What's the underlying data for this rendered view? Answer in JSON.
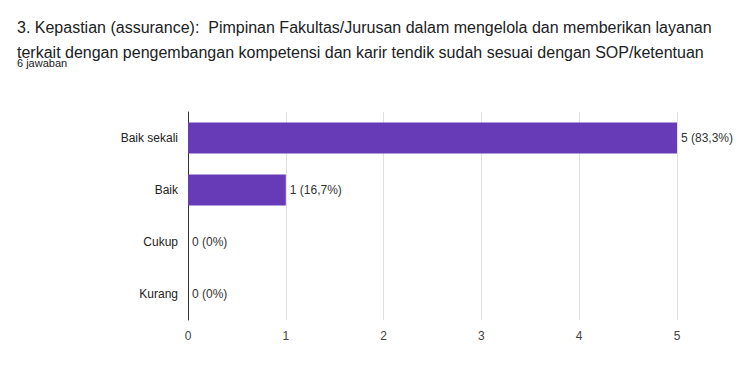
{
  "chart_data": {
    "type": "bar",
    "title": "3. Kepastian (assurance):  Pimpinan Fakultas/Jurusan dalam mengelola dan memberikan layanan terkait dengan pengembangan kompetensi dan karir tendik sudah sesuai dengan SOP/ketentuan",
    "subtitle": "6 jawaban",
    "categories": [
      "Baik sekali",
      "Baik",
      "Cukup",
      "Kurang"
    ],
    "values": [
      5,
      1,
      0,
      0
    ],
    "value_labels": [
      "5 (83,3%)",
      "1 (16,7%)",
      "0 (0%)",
      "0 (0%)"
    ],
    "color": "#673ab7",
    "orientation": "horizontal",
    "data_labels": true,
    "xlim": [
      0,
      5
    ],
    "xticks": [
      0,
      1,
      2,
      3,
      4,
      5
    ],
    "grid": true
  }
}
